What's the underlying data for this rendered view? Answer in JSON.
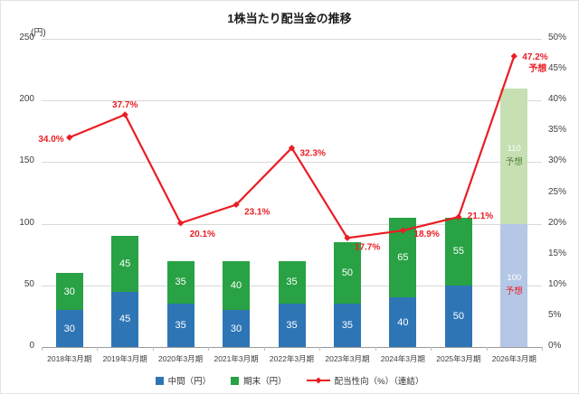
{
  "title": "1株当たり配当金の推移",
  "axis": {
    "left_unit": "(円)",
    "left_ticks": [
      0,
      50,
      100,
      150,
      200,
      250
    ],
    "right_ticks": [
      "0%",
      "5%",
      "10%",
      "15%",
      "20%",
      "25%",
      "30%",
      "35%",
      "40%",
      "45%",
      "50%"
    ]
  },
  "chart_data": {
    "type": "bar+line",
    "title": "1株当たり配当金の推移",
    "categories": [
      "2018年3月期",
      "2019年3月期",
      "2020年3月期",
      "2021年3月期",
      "2022年3月期",
      "2023年3月期",
      "2024年3月期",
      "2025年3月期",
      "2026年3月期"
    ],
    "series": [
      {
        "name": "中間（円）",
        "type": "bar",
        "stack": "dps",
        "color": "#2e75b6",
        "forecast_color": "#b4c7e7",
        "values": [
          30,
          45,
          35,
          30,
          35,
          35,
          40,
          50,
          100
        ]
      },
      {
        "name": "期末（円）",
        "type": "bar",
        "stack": "dps",
        "color": "#28a244",
        "forecast_color": "#c6e0b4",
        "values": [
          30,
          45,
          35,
          40,
          35,
          50,
          65,
          55,
          110
        ]
      },
      {
        "name": "配当性向（%）（連結）",
        "type": "line",
        "axis": "right",
        "color": "#ea1d24",
        "values": [
          34.0,
          37.7,
          20.1,
          23.1,
          32.3,
          17.7,
          18.9,
          21.1,
          47.2
        ],
        "labels": [
          "34.0%",
          "37.7%",
          "20.1%",
          "23.1%",
          "32.3%",
          "17.7%",
          "18.9%",
          "21.1%",
          "47.2%"
        ]
      }
    ],
    "forecast_index": 8,
    "forecast_label": "予想",
    "left_ylim": [
      0,
      250
    ],
    "right_ylim": [
      0,
      50
    ],
    "grid": true,
    "legend_position": "bottom"
  },
  "legend": {
    "items": [
      {
        "label": "中間（円）",
        "swatch": "square",
        "color": "#2e75b6"
      },
      {
        "label": "期末（円）",
        "swatch": "square",
        "color": "#28a244"
      },
      {
        "label": "配当性向（%）（連結）",
        "swatch": "line-marker",
        "color": "#ea1d24"
      }
    ]
  }
}
